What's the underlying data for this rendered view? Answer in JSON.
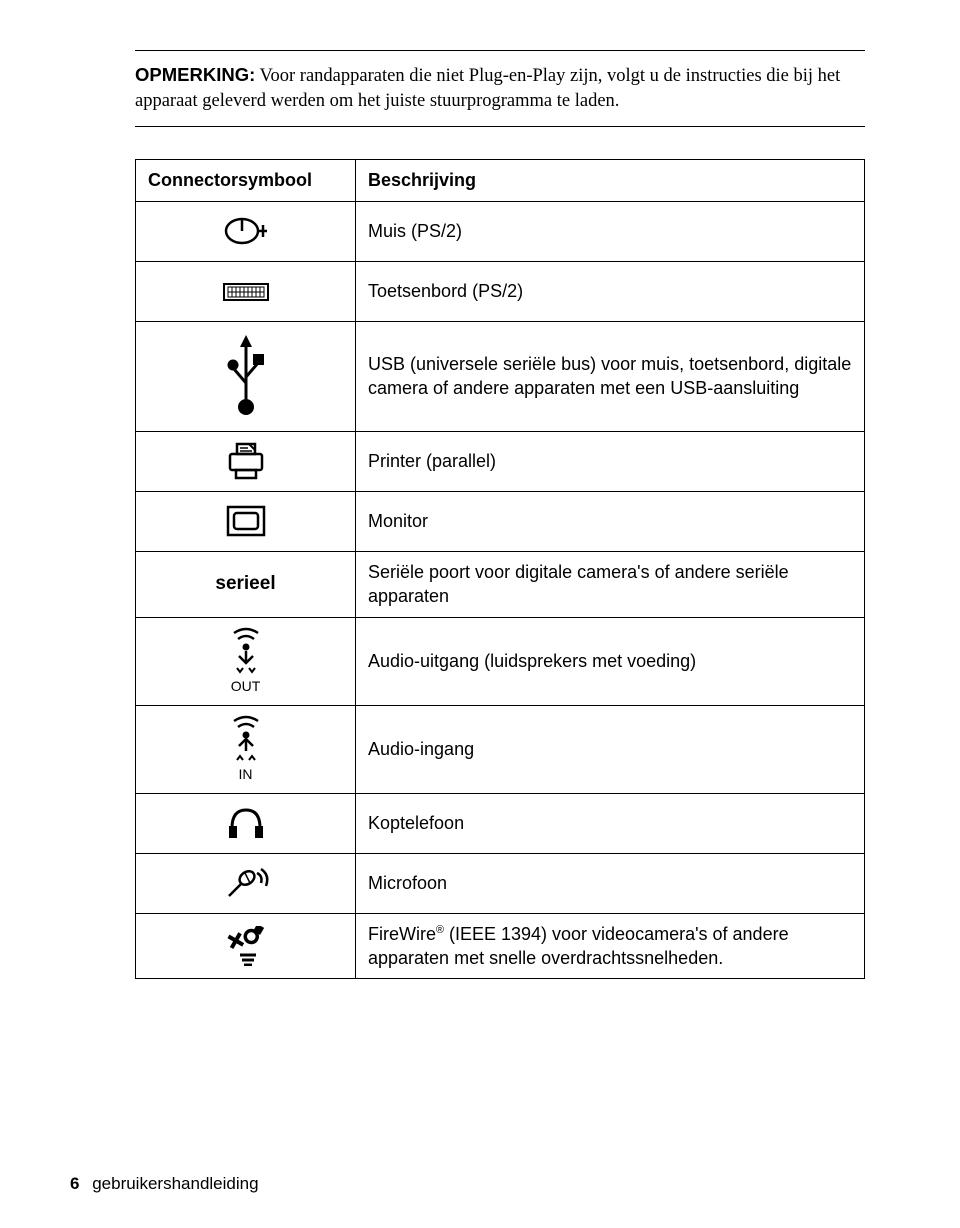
{
  "note": {
    "label": "OPMERKING:",
    "text": "Voor randapparaten die niet Plug-en-Play zijn, volgt u de instructies die bij het apparaat geleverd werden om het juiste stuurprogramma te laden."
  },
  "table": {
    "header_symbol": "Connectorsymbool",
    "header_desc": "Beschrijving",
    "rows": [
      {
        "icon": "mouse",
        "desc": "Muis (PS/2)"
      },
      {
        "icon": "keyboard",
        "desc": "Toetsenbord (PS/2)"
      },
      {
        "icon": "usb",
        "desc": "USB (universele seriële bus) voor muis, toetsenbord, digitale camera of andere apparaten met een USB-aansluiting"
      },
      {
        "icon": "printer",
        "desc": "Printer (parallel)"
      },
      {
        "icon": "monitor",
        "desc": "Monitor"
      },
      {
        "icon": "serial",
        "symbol_text": "serieel",
        "desc": "Seriële poort voor digitale camera's of andere seriële apparaten"
      },
      {
        "icon": "audio-out",
        "symbol_text": "OUT",
        "desc": "Audio-uitgang (luidsprekers met voeding)"
      },
      {
        "icon": "audio-in",
        "symbol_text": "IN",
        "desc": "Audio-ingang"
      },
      {
        "icon": "headphones",
        "desc": "Koptelefoon"
      },
      {
        "icon": "mic",
        "desc": "Microfoon"
      },
      {
        "icon": "firewire",
        "desc_html": "FireWire<sup>®</sup> (IEEE 1394) voor videocamera's of andere apparaten met snelle overdrachtssnelheden."
      }
    ]
  },
  "footer": {
    "page_number": "6",
    "title": "gebruikershandleiding"
  }
}
